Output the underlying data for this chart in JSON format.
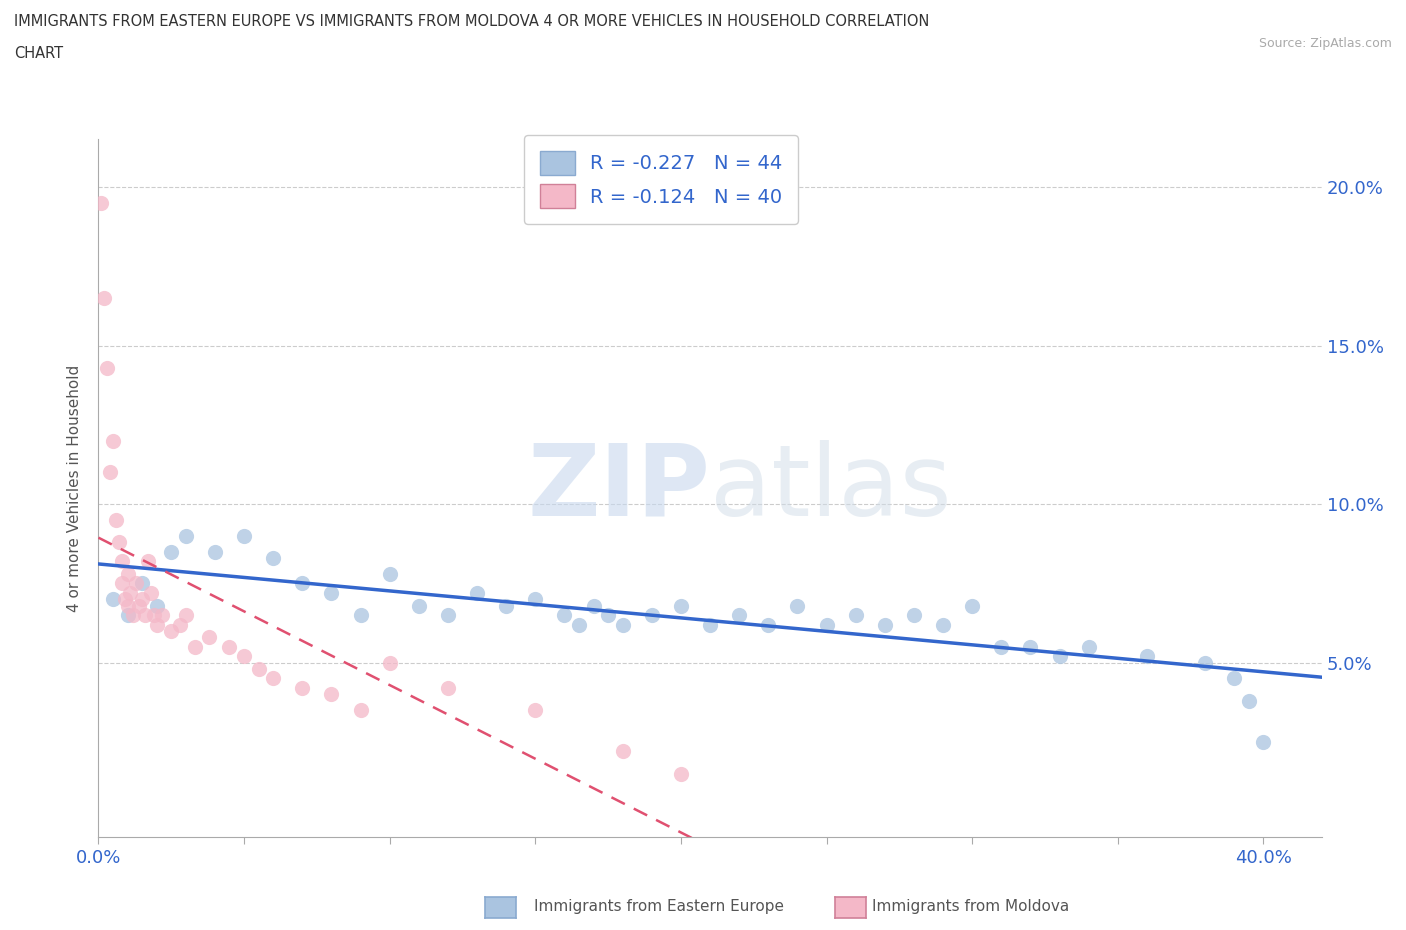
{
  "title_line1": "IMMIGRANTS FROM EASTERN EUROPE VS IMMIGRANTS FROM MOLDOVA 4 OR MORE VEHICLES IN HOUSEHOLD CORRELATION",
  "title_line2": "CHART",
  "source_text": "Source: ZipAtlas.com",
  "ylabel": "4 or more Vehicles in Household",
  "xlim": [
    0.0,
    0.42
  ],
  "ylim": [
    -0.005,
    0.215
  ],
  "R_eastern": -0.227,
  "N_eastern": 44,
  "R_moldova": -0.124,
  "N_moldova": 40,
  "color_eastern": "#aac4e0",
  "color_eastern_line": "#3366cc",
  "color_moldova": "#f4b8c8",
  "color_moldova_line": "#e05070",
  "watermark": "ZIPatlas",
  "eastern_europe_x": [
    0.005,
    0.01,
    0.015,
    0.02,
    0.025,
    0.03,
    0.04,
    0.05,
    0.06,
    0.07,
    0.08,
    0.09,
    0.1,
    0.11,
    0.12,
    0.13,
    0.14,
    0.15,
    0.16,
    0.165,
    0.17,
    0.175,
    0.18,
    0.19,
    0.2,
    0.21,
    0.22,
    0.23,
    0.24,
    0.25,
    0.26,
    0.27,
    0.28,
    0.29,
    0.3,
    0.31,
    0.32,
    0.33,
    0.34,
    0.36,
    0.38,
    0.39,
    0.395,
    0.4
  ],
  "eastern_europe_y": [
    0.07,
    0.065,
    0.075,
    0.068,
    0.085,
    0.09,
    0.085,
    0.09,
    0.083,
    0.075,
    0.072,
    0.065,
    0.078,
    0.068,
    0.065,
    0.072,
    0.068,
    0.07,
    0.065,
    0.062,
    0.068,
    0.065,
    0.062,
    0.065,
    0.068,
    0.062,
    0.065,
    0.062,
    0.068,
    0.062,
    0.065,
    0.062,
    0.065,
    0.062,
    0.068,
    0.055,
    0.055,
    0.052,
    0.055,
    0.052,
    0.05,
    0.045,
    0.038,
    0.025
  ],
  "moldova_x": [
    0.001,
    0.002,
    0.003,
    0.004,
    0.005,
    0.006,
    0.007,
    0.008,
    0.008,
    0.009,
    0.01,
    0.01,
    0.011,
    0.012,
    0.013,
    0.014,
    0.015,
    0.016,
    0.017,
    0.018,
    0.019,
    0.02,
    0.022,
    0.025,
    0.028,
    0.03,
    0.033,
    0.038,
    0.045,
    0.05,
    0.055,
    0.06,
    0.07,
    0.08,
    0.09,
    0.1,
    0.12,
    0.15,
    0.18,
    0.2
  ],
  "moldova_y": [
    0.195,
    0.165,
    0.143,
    0.11,
    0.12,
    0.095,
    0.088,
    0.082,
    0.075,
    0.07,
    0.078,
    0.068,
    0.072,
    0.065,
    0.075,
    0.068,
    0.07,
    0.065,
    0.082,
    0.072,
    0.065,
    0.062,
    0.065,
    0.06,
    0.062,
    0.065,
    0.055,
    0.058,
    0.055,
    0.052,
    0.048,
    0.045,
    0.042,
    0.04,
    0.035,
    0.05,
    0.042,
    0.035,
    0.022,
    0.015
  ]
}
